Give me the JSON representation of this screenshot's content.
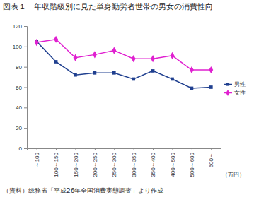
{
  "chart_data": {
    "type": "line",
    "title": "図表１　年収階級別に見た単身勤労者世帯の男女の消費性向",
    "categories": [
      "～100",
      "100～150",
      "150～200",
      "200～250",
      "250～300",
      "300～350",
      "350～400",
      "400～500",
      "500～600",
      "600～"
    ],
    "series": [
      {
        "name": "男性",
        "color": "#1f3f8f",
        "marker": "square",
        "values": [
          105,
          85,
          72,
          74,
          74,
          68,
          76,
          68,
          59,
          60
        ]
      },
      {
        "name": "女性",
        "color": "#e020d0",
        "marker": "diamond",
        "values": [
          104,
          107,
          89,
          92,
          96,
          88,
          88,
          91,
          77,
          77
        ]
      }
    ],
    "x_label": "（万円）",
    "source": "（資料）総務省「平成26年全国消費実態調査」より作成",
    "ylim": [
      0,
      120
    ],
    "yticks": [
      0,
      20,
      40,
      60,
      80,
      100,
      120
    ],
    "grid": false,
    "legend": "right"
  }
}
